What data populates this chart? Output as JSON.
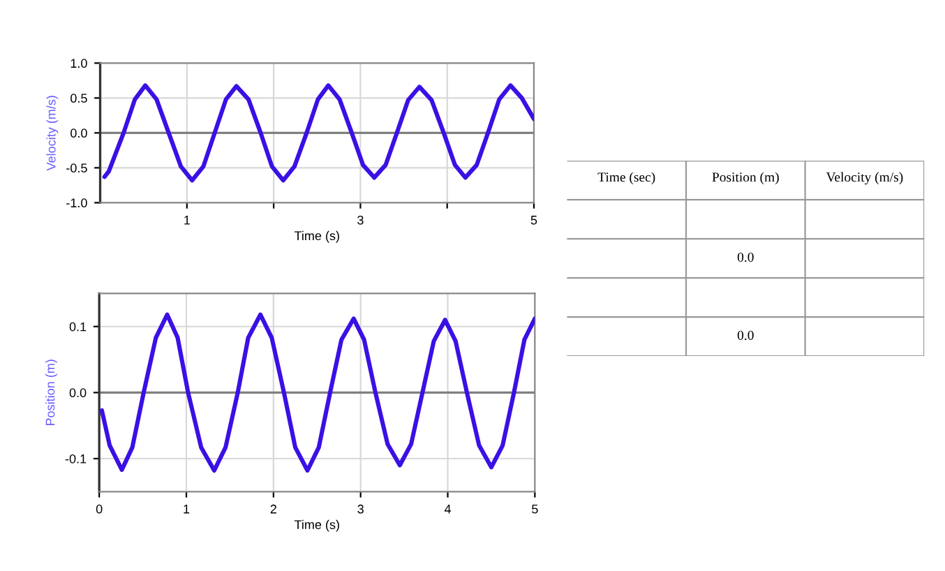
{
  "chart_data": [
    {
      "type": "line",
      "xlabel": "Time (s)",
      "ylabel": "Velocity (m/s)",
      "xlim": [
        0,
        5
      ],
      "ylim": [
        -1.0,
        1.0
      ],
      "xticks": [
        1,
        {
          "value": 2,
          "label": null
        },
        3,
        {
          "value": 4,
          "label": null
        },
        5
      ],
      "yticks": [
        {
          "value": -1.0,
          "label": "-1.0"
        },
        {
          "value": -0.5,
          "label": "-0.5"
        },
        {
          "value": 0,
          "label": "0.0"
        },
        {
          "value": 0.5,
          "label": "0.5"
        },
        {
          "value": 1.0,
          "label": "1.0"
        }
      ],
      "grid": true,
      "line_style": "solid",
      "ref_lines": [
        {
          "axis": "y",
          "value": 0,
          "color": "#808080"
        }
      ],
      "series": [
        {
          "color": "#3a10e5",
          "x": [
            0.05,
            0.1,
            0.27,
            0.4,
            0.52,
            0.65,
            0.79,
            0.93,
            1.06,
            1.19,
            1.32,
            1.45,
            1.57,
            1.71,
            1.85,
            1.98,
            2.11,
            2.24,
            2.38,
            2.51,
            2.63,
            2.76,
            2.9,
            3.03,
            3.16,
            3.29,
            3.42,
            3.55,
            3.68,
            3.82,
            3.96,
            4.09,
            4.21,
            4.34,
            4.47,
            4.6,
            4.73,
            4.86,
            5.0
          ],
          "values": [
            -0.63,
            -0.55,
            0,
            0.48,
            0.68,
            0.48,
            0,
            -0.48,
            -0.68,
            -0.48,
            0,
            0.48,
            0.67,
            0.48,
            0,
            -0.48,
            -0.68,
            -0.48,
            0,
            0.48,
            0.68,
            0.48,
            0,
            -0.46,
            -0.64,
            -0.46,
            0,
            0.47,
            0.66,
            0.47,
            0,
            -0.46,
            -0.64,
            -0.46,
            0,
            0.48,
            0.68,
            0.5,
            0.2
          ]
        }
      ]
    },
    {
      "type": "line",
      "xlabel": "Time (s)",
      "ylabel": "Position (m)",
      "xlim": [
        0,
        5
      ],
      "ylim": [
        -0.15,
        0.15
      ],
      "xticks": [
        0,
        1,
        2,
        3,
        4,
        5
      ],
      "yticks": [
        -0.1,
        {
          "value": 0,
          "label": "0.0"
        },
        0.1
      ],
      "grid": true,
      "line_style": "solid",
      "ref_lines": [
        {
          "axis": "y",
          "value": 0,
          "color": "#808080"
        }
      ],
      "series": [
        {
          "color": "#3a10e5",
          "x": [
            0.03,
            0.12,
            0.26,
            0.38,
            0.51,
            0.65,
            0.78,
            0.9,
            1.02,
            1.17,
            1.32,
            1.45,
            1.59,
            1.71,
            1.85,
            1.98,
            2.12,
            2.25,
            2.39,
            2.52,
            2.65,
            2.78,
            2.92,
            3.04,
            3.17,
            3.31,
            3.45,
            3.58,
            3.71,
            3.84,
            3.97,
            4.09,
            4.22,
            4.36,
            4.5,
            4.63,
            4.76,
            4.88,
            5.0
          ],
          "values": [
            -0.027,
            -0.08,
            -0.117,
            -0.083,
            0,
            0.083,
            0.118,
            0.083,
            0,
            -0.083,
            -0.118,
            -0.083,
            0,
            0.083,
            0.118,
            0.083,
            0,
            -0.083,
            -0.118,
            -0.083,
            0,
            0.08,
            0.112,
            0.08,
            0,
            -0.078,
            -0.11,
            -0.078,
            0,
            0.078,
            0.11,
            0.078,
            0,
            -0.08,
            -0.113,
            -0.08,
            0,
            0.08,
            0.112
          ]
        }
      ]
    },
    {
      "type": "other",
      "categories": [
        "Time (sec)",
        "Position (m)",
        "Velocity (m/s)"
      ],
      "cell_labels": [
        [
          null,
          null,
          null
        ],
        [
          null,
          "0.0",
          null
        ],
        [
          null,
          null,
          null
        ],
        [
          null,
          "0.0",
          null
        ]
      ]
    }
  ]
}
